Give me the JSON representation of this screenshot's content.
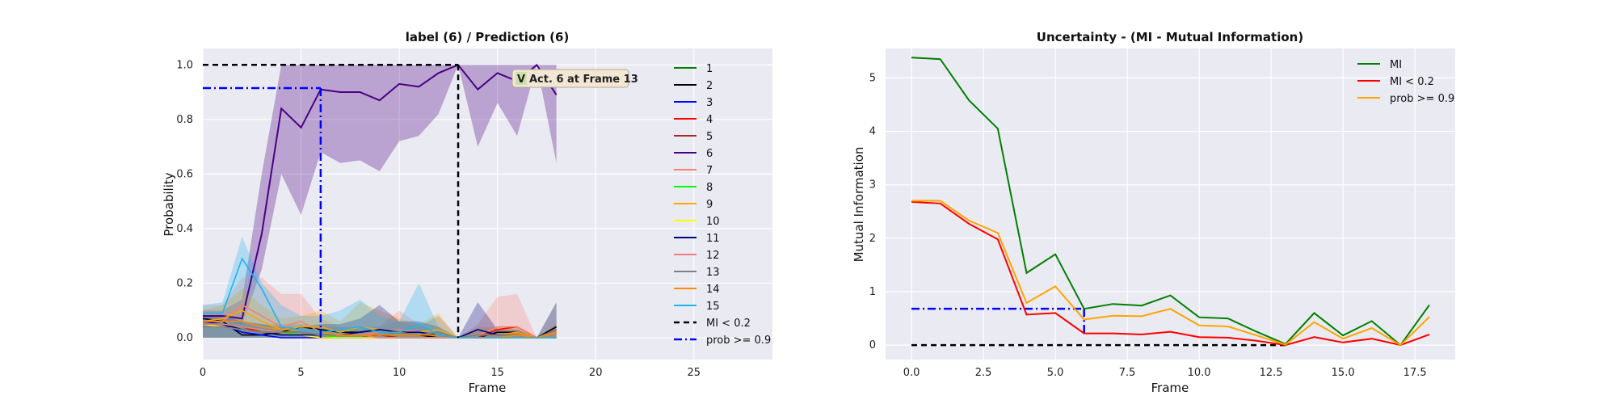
{
  "chart_data": [
    {
      "type": "line",
      "title": "label (6) / Prediction (6)",
      "xlabel": "Frame",
      "ylabel": "Probability",
      "xlim": [
        0,
        29
      ],
      "ylim": [
        -0.08,
        1.06
      ],
      "xticks": [
        "0",
        "5",
        "10",
        "15",
        "20",
        "25"
      ],
      "yticks": [
        "0.0",
        "0.2",
        "0.4",
        "0.6",
        "0.8",
        "1.0"
      ],
      "grid": true,
      "legend": "right",
      "annotation": {
        "badge": "V",
        "text": "Act. 6 at Frame 13",
        "x": 13
      },
      "x": [
        0,
        1,
        2,
        3,
        4,
        5,
        6,
        7,
        8,
        9,
        10,
        11,
        12,
        13,
        14,
        15,
        16,
        17,
        18
      ],
      "series": [
        {
          "name": "1",
          "color": "#008000",
          "values": [
            0.06,
            0.05,
            0.04,
            0.03,
            0.02,
            0.02,
            0.01,
            0.01,
            0.01,
            0.01,
            0.01,
            0.01,
            0.01,
            0.0,
            0.0,
            0.0,
            0.0,
            0.0,
            0.0
          ]
        },
        {
          "name": "2",
          "color": "#000000",
          "values": [
            0.07,
            0.06,
            0.01,
            0.01,
            0.02,
            0.04,
            0.03,
            0.02,
            0.02,
            0.03,
            0.02,
            0.01,
            0.0,
            0.0,
            0.0,
            0.02,
            0.02,
            0.0,
            0.04
          ]
        },
        {
          "name": "3",
          "color": "#0000ff",
          "values": [
            0.06,
            0.05,
            0.02,
            0.01,
            0.0,
            0.0,
            0.0,
            0.0,
            0.0,
            0.0,
            0.0,
            0.0,
            0.0,
            0.0,
            0.0,
            0.0,
            0.0,
            0.0,
            0.0
          ]
        },
        {
          "name": "4",
          "color": "#ff0000",
          "values": [
            0.05,
            0.05,
            0.04,
            0.02,
            0.01,
            0.01,
            0.0,
            0.0,
            0.0,
            0.0,
            0.0,
            0.0,
            0.0,
            0.0,
            0.0,
            0.03,
            0.04,
            0.0,
            0.02
          ]
        },
        {
          "name": "5",
          "color": "#a52a2a",
          "values": [
            0.05,
            0.04,
            0.03,
            0.02,
            0.01,
            0.01,
            0.0,
            0.0,
            0.0,
            0.01,
            0.0,
            0.0,
            0.0,
            0.0,
            0.0,
            0.0,
            0.0,
            0.0,
            0.0
          ]
        },
        {
          "name": "6",
          "color": "#4b0082",
          "band": true,
          "lower": [
            0.06,
            0.06,
            0.05,
            0.25,
            0.6,
            0.45,
            0.68,
            0.64,
            0.65,
            0.61,
            0.72,
            0.74,
            0.82,
            1.0,
            0.7,
            0.86,
            0.74,
            1.0,
            0.64
          ],
          "upper": [
            0.1,
            0.1,
            0.14,
            0.6,
            1.0,
            1.0,
            1.0,
            1.0,
            1.0,
            1.0,
            1.0,
            1.0,
            1.0,
            1.0,
            1.0,
            1.0,
            1.0,
            1.0,
            1.0
          ],
          "values": [
            0.08,
            0.08,
            0.07,
            0.38,
            0.84,
            0.77,
            0.91,
            0.9,
            0.9,
            0.87,
            0.93,
            0.92,
            0.97,
            1.0,
            0.91,
            0.97,
            0.94,
            1.0,
            0.89
          ]
        },
        {
          "name": "7",
          "color": "#fa8072",
          "band": true,
          "lower": [
            0.0,
            0.0,
            0.0,
            0.0,
            0.0,
            0.0,
            0.0,
            0.0,
            0.0,
            0.0,
            0.0,
            0.0,
            0.0,
            0.0,
            0.0,
            0.0,
            0.0,
            0.0,
            0.0
          ],
          "upper": [
            0.12,
            0.12,
            0.22,
            0.22,
            0.16,
            0.16,
            0.07,
            0.04,
            0.03,
            0.04,
            0.1,
            0.05,
            0.02,
            0.0,
            0.05,
            0.15,
            0.16,
            0.0,
            0.05
          ],
          "values": [
            0.06,
            0.06,
            0.12,
            0.08,
            0.04,
            0.06,
            0.02,
            0.01,
            0.01,
            0.02,
            0.03,
            0.02,
            0.01,
            0.0,
            0.01,
            0.04,
            0.04,
            0.0,
            0.02
          ]
        },
        {
          "name": "8",
          "color": "#00ff00",
          "values": [
            0.05,
            0.05,
            0.04,
            0.03,
            0.02,
            0.01,
            0.01,
            0.0,
            0.0,
            0.0,
            0.0,
            0.0,
            0.0,
            0.0,
            0.0,
            0.0,
            0.0,
            0.0,
            0.0
          ]
        },
        {
          "name": "9",
          "color": "#ffa500",
          "band": true,
          "lower": [
            0.0,
            0.0,
            0.0,
            0.0,
            0.0,
            0.0,
            0.0,
            0.0,
            0.0,
            0.0,
            0.0,
            0.0,
            0.0,
            0.0,
            0.0,
            0.0,
            0.0,
            0.0,
            0.0
          ],
          "upper": [
            0.1,
            0.12,
            0.18,
            0.12,
            0.07,
            0.08,
            0.1,
            0.06,
            0.13,
            0.1,
            0.07,
            0.05,
            0.09,
            0.0,
            0.03,
            0.04,
            0.04,
            0.0,
            0.05
          ],
          "values": [
            0.06,
            0.07,
            0.1,
            0.06,
            0.03,
            0.04,
            0.04,
            0.02,
            0.04,
            0.03,
            0.02,
            0.02,
            0.03,
            0.0,
            0.01,
            0.01,
            0.02,
            0.0,
            0.03
          ]
        },
        {
          "name": "10",
          "color": "#ffff00",
          "values": [
            0.05,
            0.04,
            0.03,
            0.02,
            0.01,
            0.01,
            0.0,
            0.0,
            0.0,
            0.0,
            0.0,
            0.0,
            0.0,
            0.0,
            0.0,
            0.0,
            0.0,
            0.0,
            0.0
          ]
        },
        {
          "name": "11",
          "color": "#000080",
          "band": true,
          "lower": [
            0.0,
            0.0,
            0.0,
            0.0,
            0.0,
            0.0,
            0.0,
            0.0,
            0.0,
            0.0,
            0.0,
            0.0,
            0.0,
            0.0,
            0.0,
            0.0,
            0.0,
            0.0,
            0.0
          ],
          "upper": [
            0.08,
            0.08,
            0.06,
            0.05,
            0.04,
            0.04,
            0.05,
            0.05,
            0.07,
            0.12,
            0.06,
            0.06,
            0.04,
            0.0,
            0.13,
            0.03,
            0.03,
            0.0,
            0.13
          ],
          "values": [
            0.05,
            0.05,
            0.03,
            0.02,
            0.01,
            0.01,
            0.01,
            0.01,
            0.02,
            0.03,
            0.02,
            0.02,
            0.01,
            0.0,
            0.03,
            0.01,
            0.01,
            0.0,
            0.03
          ]
        },
        {
          "name": "12",
          "color": "#f08080",
          "values": [
            0.05,
            0.05,
            0.04,
            0.03,
            0.02,
            0.02,
            0.01,
            0.01,
            0.01,
            0.0,
            0.0,
            0.0,
            0.0,
            0.0,
            0.0,
            0.0,
            0.0,
            0.0,
            0.0
          ]
        },
        {
          "name": "13",
          "color": "#808080",
          "band": true,
          "lower": [
            0.0,
            0.0,
            0.0,
            0.0,
            0.0,
            0.0,
            0.0,
            0.0,
            0.0,
            0.0,
            0.0,
            0.0,
            0.0,
            0.0,
            0.0,
            0.0,
            0.0,
            0.0,
            0.0
          ],
          "upper": [
            0.07,
            0.07,
            0.06,
            0.05,
            0.05,
            0.05,
            0.04,
            0.04,
            0.04,
            0.04,
            0.06,
            0.04,
            0.08,
            0.0,
            0.04,
            0.04,
            0.04,
            0.0,
            0.13
          ],
          "values": [
            0.04,
            0.04,
            0.03,
            0.02,
            0.02,
            0.02,
            0.01,
            0.01,
            0.01,
            0.01,
            0.02,
            0.01,
            0.02,
            0.0,
            0.01,
            0.01,
            0.01,
            0.0,
            0.03
          ]
        },
        {
          "name": "14",
          "color": "#ff8c00",
          "values": [
            0.06,
            0.06,
            0.06,
            0.04,
            0.03,
            0.03,
            0.02,
            0.01,
            0.01,
            0.01,
            0.01,
            0.01,
            0.01,
            0.0,
            0.0,
            0.0,
            0.01,
            0.0,
            0.02
          ]
        },
        {
          "name": "15",
          "color": "#1eb4f0",
          "band": true,
          "lower": [
            0.0,
            0.0,
            0.0,
            0.0,
            0.0,
            0.0,
            0.0,
            0.0,
            0.0,
            0.0,
            0.0,
            0.0,
            0.0,
            0.0,
            0.0,
            0.0,
            0.0,
            0.0,
            0.0
          ],
          "upper": [
            0.12,
            0.13,
            0.37,
            0.2,
            0.12,
            0.08,
            0.08,
            0.1,
            0.14,
            0.08,
            0.06,
            0.2,
            0.04,
            0.0,
            0.0,
            0.0,
            0.0,
            0.0,
            0.0
          ],
          "values": [
            0.09,
            0.09,
            0.29,
            0.18,
            0.04,
            0.03,
            0.02,
            0.03,
            0.04,
            0.02,
            0.02,
            0.05,
            0.01,
            0.0,
            0.0,
            0.0,
            0.0,
            0.0,
            0.0
          ]
        }
      ],
      "reference_lines": [
        {
          "name": "MI < 0.2",
          "color": "#000000",
          "dash": "7,5",
          "horizontal_y": 1.0,
          "x_from": 0,
          "x_to": 13,
          "vertical_x": 13
        },
        {
          "name": "prob >= 0.9",
          "color": "#0000ff",
          "dash": "10,4,2,4",
          "horizontal_y": 0.915,
          "x_from": 0,
          "x_to": 6,
          "vertical_x": 6
        }
      ]
    },
    {
      "type": "line",
      "title": "Uncertainty - (MI - Mutual Information)",
      "xlabel": "Frame",
      "ylabel": "Mutual Information",
      "xlim": [
        -0.9,
        18.9
      ],
      "ylim": [
        -0.27,
        5.55
      ],
      "xticks": [
        0,
        2.5,
        5,
        7.5,
        10,
        12.5,
        15,
        17.5
      ],
      "xtick_labels": [
        "0.0",
        "2.5",
        "5.0",
        "7.5",
        "10.0",
        "12.5",
        "15.0",
        "17.5"
      ],
      "yticks": [
        "0",
        "1",
        "2",
        "3",
        "4",
        "5"
      ],
      "grid": true,
      "legend": "top-right",
      "x": [
        0,
        1,
        2,
        3,
        4,
        5,
        6,
        7,
        8,
        9,
        10,
        11,
        12,
        13,
        14,
        15,
        16,
        17,
        18
      ],
      "series": [
        {
          "name": "MI",
          "color": "#008000",
          "values": [
            5.38,
            5.35,
            4.58,
            4.05,
            1.35,
            1.7,
            0.68,
            0.77,
            0.74,
            0.93,
            0.52,
            0.5,
            0.25,
            0.02,
            0.6,
            0.18,
            0.45,
            0.0,
            0.75
          ]
        },
        {
          "name": "MI < 0.2",
          "color": "#ff0000",
          "values": [
            2.68,
            2.65,
            2.27,
            1.98,
            0.57,
            0.6,
            0.22,
            0.22,
            0.2,
            0.25,
            0.15,
            0.14,
            0.08,
            0.0,
            0.15,
            0.05,
            0.12,
            0.0,
            0.2
          ]
        },
        {
          "name": "prob >= 0.9",
          "color": "#ffa500",
          "values": [
            2.7,
            2.7,
            2.33,
            2.1,
            0.79,
            1.1,
            0.48,
            0.55,
            0.54,
            0.68,
            0.37,
            0.35,
            0.18,
            0.01,
            0.43,
            0.12,
            0.32,
            0.0,
            0.53
          ]
        }
      ],
      "reference_lines": [
        {
          "color": "#000000",
          "dash": "7,5",
          "horizontal_y": 0.0,
          "x_from": 0,
          "x_to": 13
        },
        {
          "color": "#0000ff",
          "dash": "10,4,2,4",
          "horizontal_y": 0.68,
          "x_from": 0,
          "x_to": 6,
          "vertical_x": 6,
          "vertical_from": 0.68,
          "vertical_to": 0.22
        }
      ]
    }
  ]
}
